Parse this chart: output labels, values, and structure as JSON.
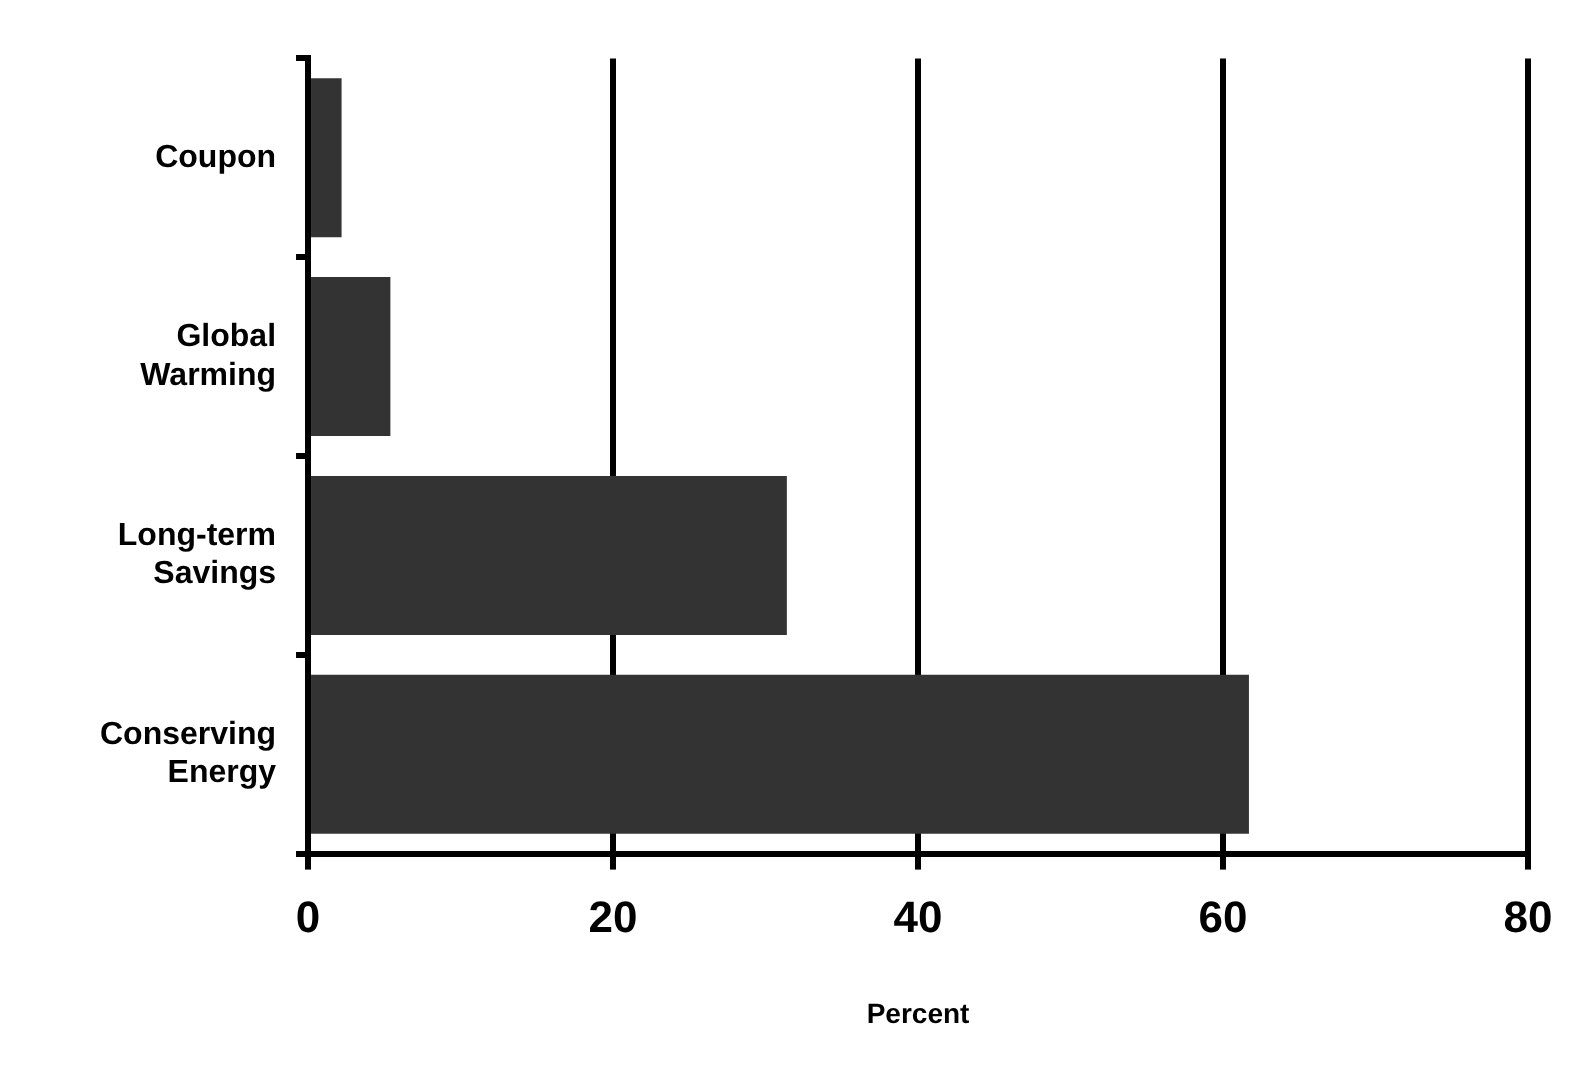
{
  "chart_data": {
    "type": "bar",
    "orientation": "horizontal",
    "xlabel": "Percent",
    "categories": [
      "Coupon",
      "Global Warming",
      "Long-term Savings",
      "Conserving Energy"
    ],
    "values": [
      2.2,
      5.4,
      31.4,
      61.7
    ],
    "color": "#333333",
    "xlim": [
      0,
      80
    ],
    "xticks": [
      0,
      20,
      40,
      60,
      80
    ],
    "grid": "x"
  }
}
